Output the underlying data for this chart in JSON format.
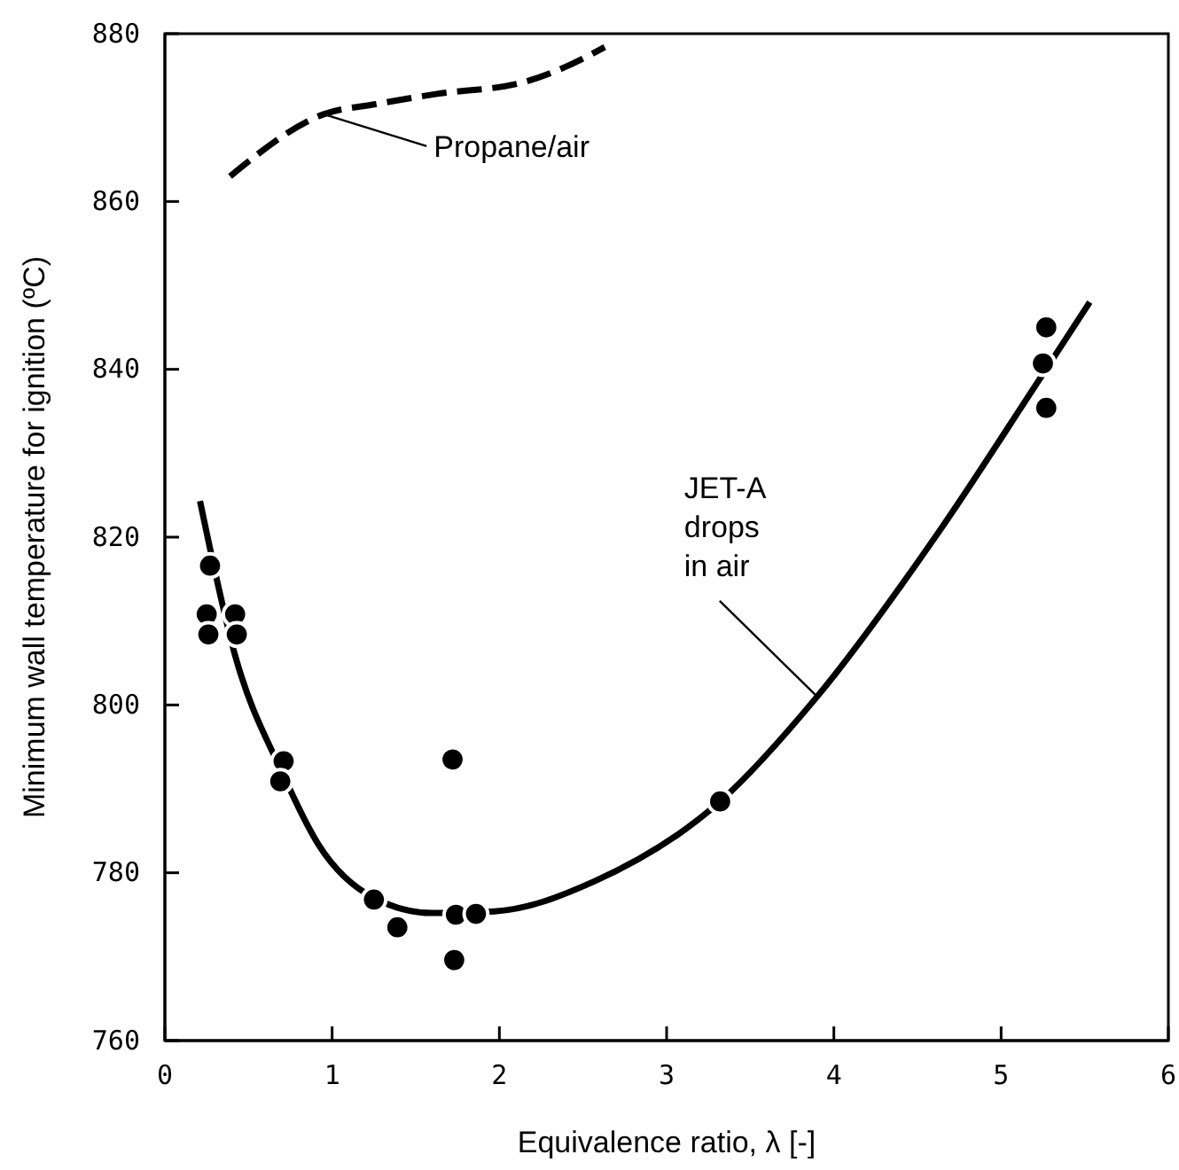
{
  "chart_data": {
    "type": "scatter",
    "xlabel": "Equivalence ratio, λ [-]",
    "ylabel": "Minimum wall temperature for ignition (ºC)",
    "xlim": [
      0,
      6
    ],
    "xticks": [
      0,
      1,
      2,
      3,
      4,
      5,
      6
    ],
    "ylim": [
      760,
      880
    ],
    "yticks": [
      760,
      780,
      800,
      820,
      840,
      860,
      880
    ],
    "grid": false,
    "series": [
      {
        "color": "#000000",
        "marker": "circle",
        "x": [
          0.27,
          0.25,
          0.26,
          0.42,
          0.43,
          0.71,
          0.69,
          1.72,
          1.25,
          1.39,
          1.74,
          1.86,
          1.73,
          3.32,
          5.27,
          5.25,
          5.27
        ],
        "values": [
          816.6,
          810.8,
          808.4,
          810.8,
          808.4,
          793.3,
          790.9,
          793.5,
          776.8,
          773.5,
          775.0,
          775.1,
          769.6,
          788.5,
          845.0,
          840.7,
          835.4
        ]
      },
      {
        "type": "line",
        "color": "#000000",
        "line_style": "solid",
        "x": [
          0.21,
          0.42,
          0.7,
          0.92,
          1.25,
          1.6,
          1.97,
          2.57,
          3.32,
          3.9,
          4.63,
          5.19,
          5.53
        ],
        "values": [
          824.3,
          805.9,
          792.0,
          783.3,
          777.0,
          775.2,
          775.4,
          779.0,
          788.5,
          801.0,
          820.7,
          837.6,
          848.0
        ]
      },
      {
        "type": "line",
        "color": "#000000",
        "line_style": "dashed",
        "x": [
          0.39,
          0.95,
          1.26,
          1.62,
          2.14,
          2.39,
          2.63
        ],
        "values": [
          863.0,
          870.4,
          871.6,
          872.8,
          874.2,
          876.0,
          878.4
        ]
      }
    ],
    "annotations": [
      {
        "text": "Propane/air",
        "x": 0.95,
        "y": 870.4
      },
      {
        "text": "JET-A\ndrops\nin air",
        "x": 3.9,
        "y": 801.0
      }
    ]
  }
}
